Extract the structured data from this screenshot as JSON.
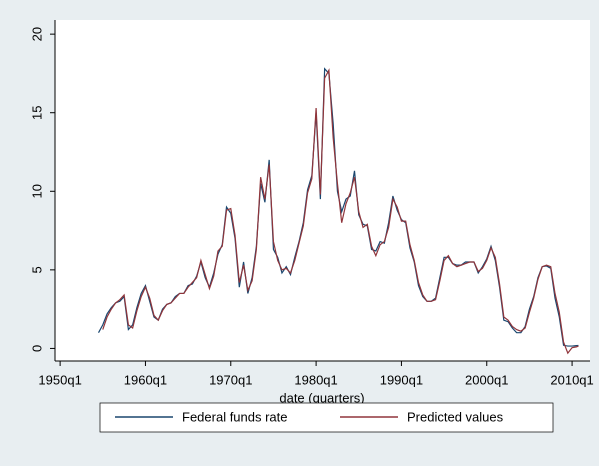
{
  "chart_data": {
    "type": "line",
    "x_label": "date (quarters)",
    "x": [
      1954.5,
      1955,
      1955.5,
      1956,
      1956.5,
      1957,
      1957.5,
      1958,
      1958.5,
      1959,
      1959.5,
      1960,
      1960.5,
      1961,
      1961.5,
      1962,
      1962.5,
      1963,
      1963.5,
      1964,
      1964.5,
      1965,
      1965.5,
      1966,
      1966.5,
      1967,
      1967.5,
      1968,
      1968.5,
      1969,
      1969.5,
      1970,
      1970.5,
      1971,
      1971.5,
      1972,
      1972.5,
      1973,
      1973.5,
      1974,
      1974.5,
      1975,
      1975.5,
      1976,
      1976.5,
      1977,
      1977.5,
      1978,
      1978.5,
      1979,
      1979.5,
      1980,
      1980.5,
      1981,
      1981.5,
      1982,
      1982.5,
      1983,
      1983.5,
      1984,
      1984.5,
      1985,
      1985.5,
      1986,
      1986.5,
      1987,
      1987.5,
      1988,
      1988.5,
      1989,
      1989.5,
      1990,
      1990.5,
      1991,
      1991.5,
      1992,
      1992.5,
      1993,
      1993.5,
      1994,
      1994.5,
      1995,
      1995.5,
      1996,
      1996.5,
      1997,
      1997.5,
      1998,
      1998.5,
      1999,
      1999.5,
      2000,
      2000.5,
      2001,
      2001.5,
      2002,
      2002.5,
      2003,
      2003.5,
      2004,
      2004.5,
      2005,
      2005.5,
      2006,
      2006.5,
      2007,
      2007.5,
      2008,
      2008.5,
      2009,
      2009.5,
      2010,
      2010.5,
      2010.75
    ],
    "series": [
      {
        "name": "Federal funds rate",
        "color": "#1a476f",
        "values": [
          1.0,
          1.5,
          2.2,
          2.6,
          2.9,
          3.0,
          3.3,
          1.2,
          1.5,
          2.6,
          3.5,
          4.0,
          3.0,
          2.0,
          1.8,
          2.5,
          2.8,
          2.9,
          3.3,
          3.5,
          3.5,
          4.0,
          4.1,
          4.6,
          5.5,
          4.5,
          3.9,
          4.8,
          6.0,
          6.6,
          9.0,
          8.6,
          7.0,
          3.9,
          5.5,
          3.5,
          4.5,
          6.5,
          10.5,
          9.3,
          12.0,
          6.3,
          5.8,
          4.8,
          5.2,
          4.7,
          5.8,
          6.8,
          8.0,
          10.1,
          11.0,
          15.0,
          9.5,
          17.8,
          17.5,
          14.3,
          10.0,
          8.7,
          9.5,
          9.7,
          11.3,
          8.5,
          7.9,
          7.8,
          6.3,
          6.2,
          6.8,
          6.7,
          8.0,
          9.7,
          8.8,
          8.2,
          8.0,
          6.4,
          5.5,
          4.0,
          3.3,
          3.0,
          3.0,
          3.2,
          4.5,
          5.8,
          5.8,
          5.4,
          5.3,
          5.3,
          5.5,
          5.5,
          5.5,
          4.8,
          5.2,
          5.7,
          6.5,
          5.6,
          3.9,
          1.8,
          1.7,
          1.3,
          1.0,
          1.0,
          1.4,
          2.5,
          3.3,
          4.5,
          5.2,
          5.25,
          5.1,
          3.2,
          2.0,
          0.2,
          0.15,
          0.15,
          0.18,
          0.19
        ]
      },
      {
        "name": "Predicted values",
        "color": "#90353b",
        "values": [
          null,
          1.2,
          2.0,
          2.5,
          2.9,
          3.1,
          3.4,
          1.5,
          1.3,
          2.4,
          3.3,
          3.9,
          3.2,
          2.1,
          1.8,
          2.4,
          2.8,
          2.9,
          3.2,
          3.5,
          3.5,
          3.9,
          4.2,
          4.5,
          5.6,
          4.7,
          3.8,
          4.6,
          6.2,
          6.5,
          8.8,
          8.9,
          7.2,
          4.2,
          5.3,
          3.7,
          4.3,
          6.3,
          10.9,
          9.5,
          11.7,
          6.8,
          5.6,
          5.0,
          5.1,
          4.8,
          5.6,
          6.7,
          7.8,
          9.9,
          10.8,
          15.3,
          9.8,
          17.2,
          17.7,
          13.4,
          10.5,
          8.0,
          9.2,
          9.9,
          10.9,
          8.7,
          7.7,
          7.9,
          6.5,
          5.9,
          6.6,
          6.8,
          7.7,
          9.5,
          9.0,
          8.1,
          8.1,
          6.6,
          5.6,
          4.2,
          3.4,
          3.0,
          3.0,
          3.1,
          4.3,
          5.6,
          5.9,
          5.4,
          5.2,
          5.3,
          5.4,
          5.5,
          5.5,
          4.9,
          5.1,
          5.6,
          6.4,
          5.8,
          4.1,
          2.0,
          1.8,
          1.4,
          1.2,
          1.1,
          1.3,
          2.3,
          3.2,
          4.4,
          5.2,
          5.3,
          5.2,
          3.5,
          2.3,
          0.4,
          -0.3,
          0.05,
          0.1,
          0.15
        ]
      }
    ],
    "xlim": [
      1949.4,
      2012.1
    ],
    "xticks": [
      {
        "value": 1950,
        "label": "1950q1"
      },
      {
        "value": 1960,
        "label": "1960q1"
      },
      {
        "value": 1970,
        "label": "1970q1"
      },
      {
        "value": 1980,
        "label": "1980q1"
      },
      {
        "value": 1990,
        "label": "1990q1"
      },
      {
        "value": 2000,
        "label": "2000q1"
      },
      {
        "value": 2010,
        "label": "2010q1"
      }
    ],
    "ylim": [
      -0.8,
      20.9
    ],
    "yticks": [
      0,
      5,
      10,
      15,
      20
    ],
    "grid": false,
    "legend": "bottom"
  }
}
